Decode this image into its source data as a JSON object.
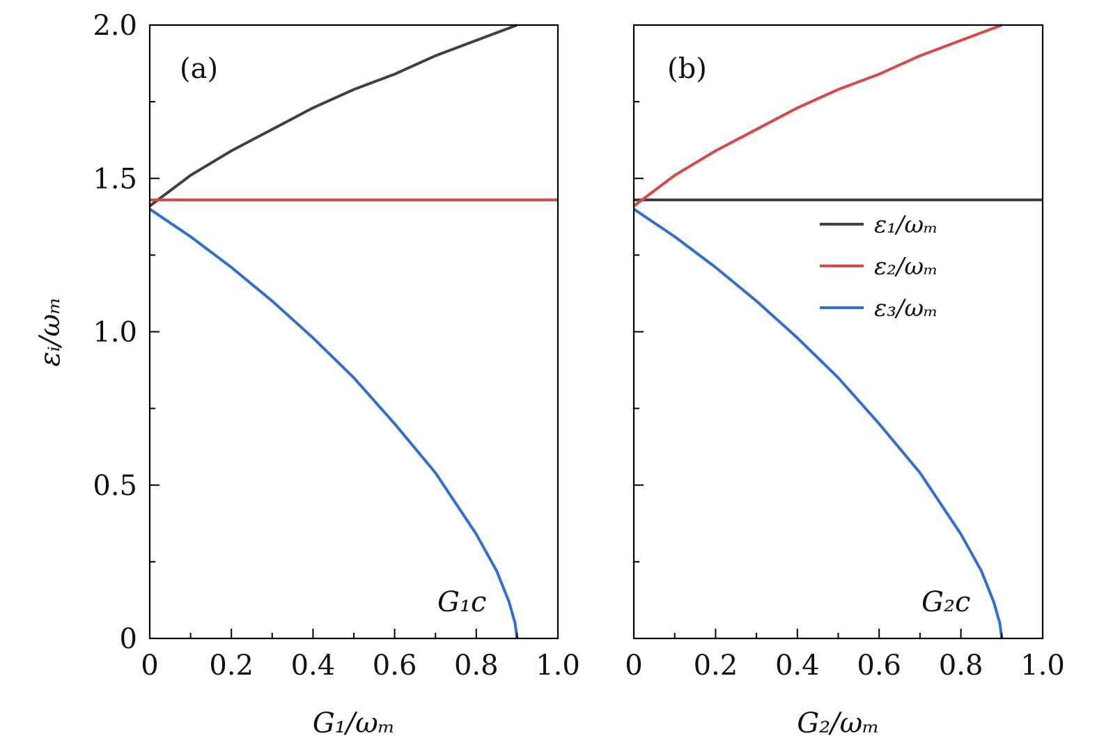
{
  "chart_data": [
    {
      "type": "line",
      "panel_label": "(a)",
      "xlabel": "G₁/ωₘ",
      "ylabel": "εᵢ/ωₘ",
      "xlim": [
        0,
        1.0
      ],
      "ylim": [
        0,
        2.0
      ],
      "x_ticks": [
        "0",
        "0.2",
        "0.4",
        "0.6",
        "0.8",
        "1.0"
      ],
      "y_ticks": [
        "0",
        "0.5",
        "1.0",
        "1.5",
        "2.0"
      ],
      "annotation": "G₁c",
      "series": [
        {
          "color": "#404040",
          "x": [
            0,
            0.05,
            0.1,
            0.2,
            0.3,
            0.4,
            0.5,
            0.6,
            0.7,
            0.8,
            0.9
          ],
          "y": [
            1.41,
            1.46,
            1.51,
            1.59,
            1.66,
            1.73,
            1.79,
            1.84,
            1.9,
            1.95,
            2.0
          ]
        },
        {
          "color": "#e04545",
          "x": [
            0,
            1.0
          ],
          "y": [
            1.43,
            1.43
          ]
        },
        {
          "color": "#2f6fd0",
          "x": [
            0,
            0.1,
            0.2,
            0.3,
            0.4,
            0.5,
            0.6,
            0.7,
            0.8,
            0.85,
            0.88,
            0.895,
            0.9
          ],
          "y": [
            1.4,
            1.31,
            1.21,
            1.1,
            0.98,
            0.85,
            0.7,
            0.54,
            0.34,
            0.22,
            0.12,
            0.05,
            0.0
          ]
        }
      ]
    },
    {
      "type": "line",
      "panel_label": "(b)",
      "xlabel": "G₂/ωₘ",
      "ylabel": "",
      "xlim": [
        0,
        1.0
      ],
      "ylim": [
        0,
        2.0
      ],
      "x_ticks": [
        "0",
        "0.2",
        "0.4",
        "0.6",
        "0.8",
        "1.0"
      ],
      "y_ticks": [],
      "annotation": "G₂c",
      "series": [
        {
          "name": "ε₁/ωₘ",
          "color": "#404040",
          "x": [
            0,
            1.0
          ],
          "y": [
            1.43,
            1.43
          ]
        },
        {
          "name": "ε₂/ωₘ",
          "color": "#e04545",
          "x": [
            0,
            0.05,
            0.1,
            0.2,
            0.3,
            0.4,
            0.5,
            0.6,
            0.7,
            0.8,
            0.9
          ],
          "y": [
            1.41,
            1.46,
            1.51,
            1.59,
            1.66,
            1.73,
            1.79,
            1.84,
            1.9,
            1.95,
            2.0
          ]
        },
        {
          "name": "ε₃/ωₘ",
          "color": "#2f6fd0",
          "x": [
            0,
            0.1,
            0.2,
            0.3,
            0.4,
            0.5,
            0.6,
            0.7,
            0.8,
            0.85,
            0.88,
            0.895,
            0.9
          ],
          "y": [
            1.4,
            1.31,
            1.21,
            1.1,
            0.98,
            0.85,
            0.7,
            0.54,
            0.34,
            0.22,
            0.12,
            0.05,
            0.0
          ]
        }
      ],
      "legend_position": "right"
    }
  ]
}
